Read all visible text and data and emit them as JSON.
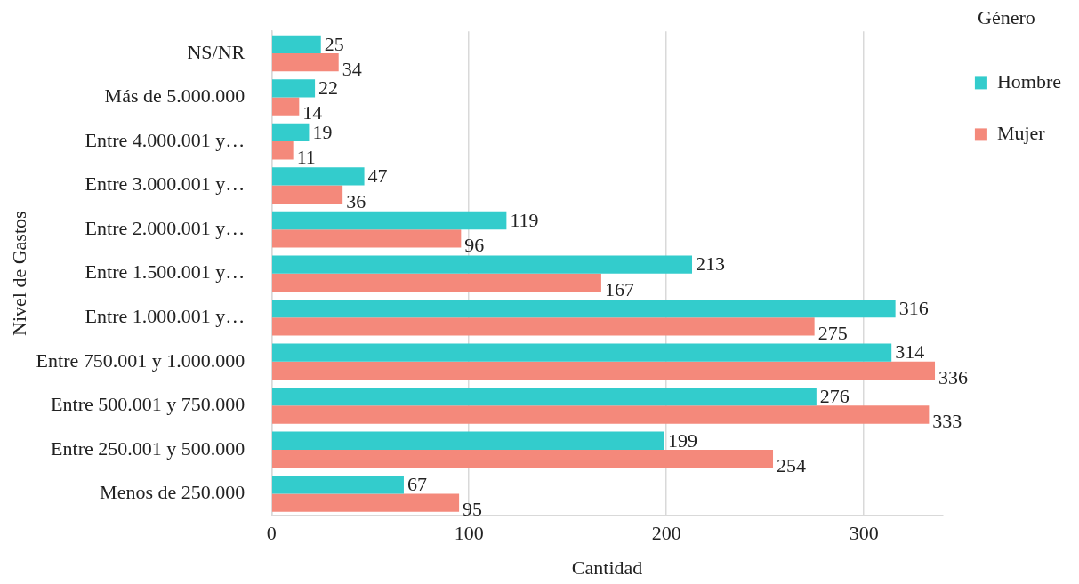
{
  "chart_data": {
    "type": "bar",
    "orientation": "horizontal",
    "xlabel": "Cantidad",
    "ylabel": "Nivel de Gastos",
    "legend_title": "Género",
    "categories": [
      "NS/NR",
      "Más de 5.000.000",
      "Entre 4.000.001 y…",
      "Entre 3.000.001 y…",
      "Entre 2.000.001 y…",
      "Entre 1.500.001 y…",
      "Entre 1.000.001 y…",
      "Entre 750.001 y 1.000.000",
      "Entre 500.001 y 750.000",
      "Entre 250.001 y 500.000",
      "Menos de 250.000"
    ],
    "series": [
      {
        "name": "Hombre",
        "color": "#33cccc",
        "values": [
          25,
          22,
          19,
          47,
          119,
          213,
          316,
          314,
          276,
          199,
          67
        ]
      },
      {
        "name": "Mujer",
        "color": "#f4897b",
        "values": [
          34,
          14,
          11,
          36,
          96,
          167,
          275,
          336,
          333,
          254,
          95
        ]
      }
    ],
    "xlim": [
      0,
      340
    ],
    "xticks": [
      0,
      100,
      200,
      300
    ],
    "grid": "x",
    "legend": "top right",
    "data_labels": true
  }
}
